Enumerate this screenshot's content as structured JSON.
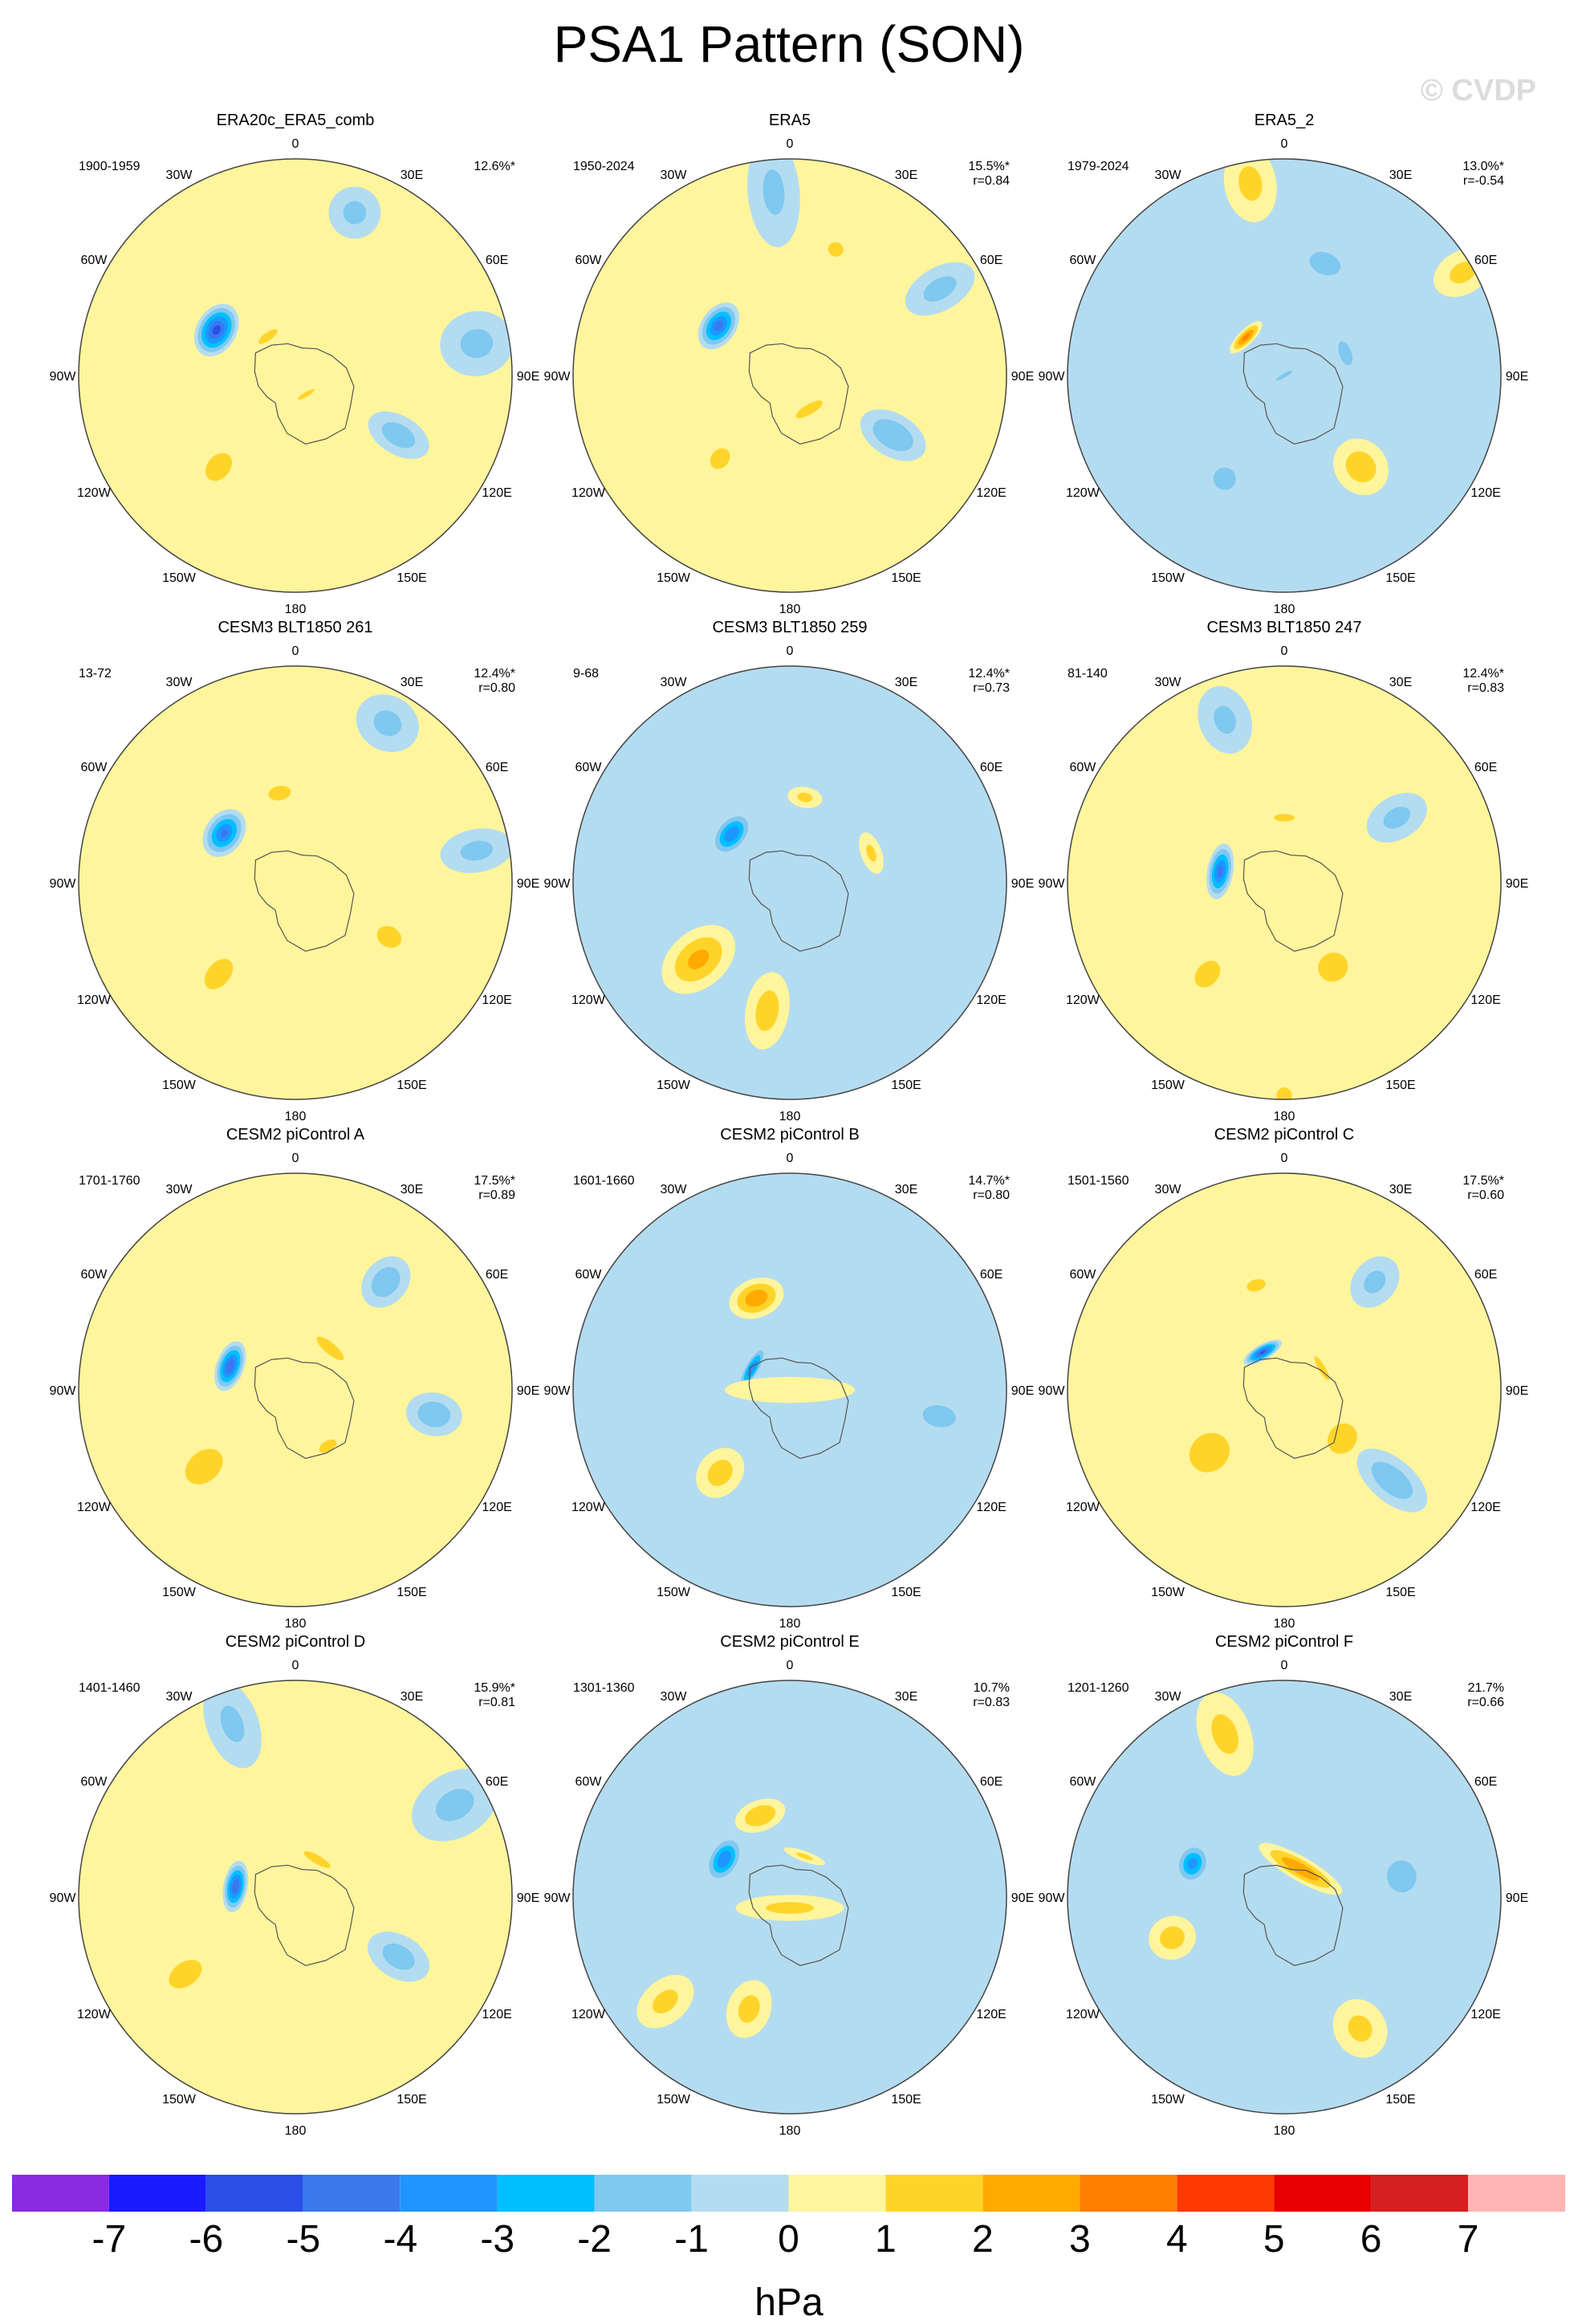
{
  "title": "PSA1 Pattern (SON)",
  "copyright": "© CVDP",
  "lon_labels": [
    "0",
    "30E",
    "60E",
    "90E",
    "120E",
    "150E",
    "180",
    "150W",
    "120W",
    "90W",
    "60W",
    "30W"
  ],
  "colorbar": {
    "units": "hPa",
    "ticks": [
      "-7",
      "-6",
      "-5",
      "-4",
      "-3",
      "-2",
      "-1",
      "0",
      "1",
      "2",
      "3",
      "4",
      "5",
      "6",
      "7"
    ],
    "colors": [
      "#8a2be2",
      "#1a1aff",
      "#2b4ee6",
      "#3a78ee",
      "#1e96ff",
      "#00bfff",
      "#7fc8f0",
      "#b4dcf0",
      "#fff59d",
      "#ffd42a",
      "#ffaa00",
      "#ff7f00",
      "#ff3a00",
      "#e60000",
      "#d42020",
      "#ffb4b4"
    ],
    "bin_edges": [
      -8,
      -7,
      -6,
      -5,
      -4,
      -3,
      -2,
      -1,
      0,
      1,
      2,
      3,
      4,
      5,
      6,
      7,
      8
    ]
  },
  "chart_data": [
    {
      "type": "heatmap",
      "name": "ERA20c_ERA5_comb",
      "period": "1900-1959",
      "pct": "12.6%*",
      "r": "",
      "background": 1,
      "blobs": [
        [
          -60,
          0.42,
          -5.5,
          0.22,
          0.13
        ],
        [
          -35,
          0.22,
          1.5,
          0.16,
          0.1
        ],
        [
          -140,
          0.55,
          1.5,
          0.25,
          0.1
        ],
        [
          20,
          0.8,
          -1.2,
          0.15,
          0.12
        ],
        [
          120,
          0.55,
          -1.6,
          0.28,
          0.09
        ],
        [
          80,
          0.85,
          -1.2,
          0.2,
          0.15
        ],
        [
          150,
          0.1,
          1.2,
          0.12,
          0.1
        ]
      ]
    },
    {
      "type": "heatmap",
      "name": "ERA5",
      "period": "1950-2024",
      "pct": "15.5%*",
      "r": "r=0.84",
      "background": 1,
      "blobs": [
        [
          -55,
          0.4,
          -4.5,
          0.2,
          0.12
        ],
        [
          150,
          0.18,
          1.8,
          0.2,
          0.12
        ],
        [
          20,
          0.62,
          1.2,
          0.12,
          0.08
        ],
        [
          120,
          0.55,
          -2.0,
          0.3,
          0.1
        ],
        [
          60,
          0.8,
          -1.3,
          0.22,
          0.1
        ],
        [
          -5,
          0.85,
          -1.1,
          0.3,
          0.12
        ],
        [
          -140,
          0.5,
          1.1,
          0.25,
          0.1
        ]
      ]
    },
    {
      "type": "heatmap",
      "name": "ERA5_2",
      "period": "1979-2024",
      "pct": "13.0%*",
      "r": "r=-0.54",
      "background": -1,
      "blobs": [
        [
          -45,
          0.25,
          3.2,
          0.14,
          0.1
        ],
        [
          20,
          0.55,
          -2.0,
          0.15,
          0.12
        ],
        [
          70,
          0.3,
          -1.8,
          0.16,
          0.1
        ],
        [
          140,
          0.55,
          1.6,
          0.25,
          0.12
        ],
        [
          -150,
          0.55,
          -1.5,
          0.18,
          0.1
        ],
        [
          -10,
          0.9,
          1.2,
          0.2,
          0.12
        ],
        [
          60,
          0.95,
          1.2,
          0.15,
          0.1
        ],
        [
          150,
          0.0,
          -1.2,
          0.1,
          0.1
        ]
      ]
    },
    {
      "type": "heatmap",
      "name": "CESM3 BLT1850 261",
      "period": "13-72",
      "pct": "12.4%*",
      "r": "r=0.80",
      "background": 1,
      "blobs": [
        [
          -55,
          0.4,
          -4.2,
          0.22,
          0.12
        ],
        [
          -10,
          0.42,
          1.5,
          0.15,
          0.1
        ],
        [
          -140,
          0.55,
          1.5,
          0.28,
          0.1
        ],
        [
          120,
          0.5,
          1.3,
          0.25,
          0.1
        ],
        [
          30,
          0.85,
          -1.2,
          0.15,
          0.15
        ],
        [
          80,
          0.85,
          -1.2,
          0.2,
          0.1
        ]
      ]
    },
    {
      "type": "heatmap",
      "name": "CESM3 BLT1850 259",
      "period": "9-68",
      "pct": "12.4%*",
      "r": "r=0.73",
      "background": -1,
      "blobs": [
        [
          -50,
          0.35,
          -4.0,
          0.22,
          0.12
        ],
        [
          -130,
          0.55,
          2.2,
          0.35,
          0.13
        ],
        [
          -170,
          0.6,
          1.5,
          0.3,
          0.1
        ],
        [
          10,
          0.4,
          1.2,
          0.12,
          0.08
        ],
        [
          70,
          0.4,
          1.1,
          0.12,
          0.1
        ]
      ]
    },
    {
      "type": "heatmap",
      "name": "CESM3 BLT1850 247",
      "period": "81-140",
      "pct": "12.4%*",
      "r": "r=0.83",
      "background": 1,
      "blobs": [
        [
          -80,
          0.3,
          -4.5,
          0.2,
          0.13
        ],
        [
          -140,
          0.55,
          1.4,
          0.25,
          0.1
        ],
        [
          150,
          0.45,
          1.8,
          0.25,
          0.12
        ],
        [
          0,
          0.3,
          1.3,
          0.12,
          0.1
        ],
        [
          60,
          0.6,
          -1.2,
          0.25,
          0.1
        ],
        [
          -20,
          0.8,
          -1.1,
          0.2,
          0.12
        ],
        [
          180,
          0.98,
          1.2,
          0.08,
          0.08
        ]
      ]
    },
    {
      "type": "heatmap",
      "name": "CESM2 piControl A",
      "period": "1701-1760",
      "pct": "17.5%*",
      "r": "r=0.89",
      "background": 1,
      "blobs": [
        [
          -70,
          0.32,
          -5.0,
          0.2,
          0.12
        ],
        [
          40,
          0.25,
          1.7,
          0.18,
          0.14
        ],
        [
          -130,
          0.55,
          1.8,
          0.3,
          0.12
        ],
        [
          150,
          0.3,
          1.2,
          0.18,
          0.1
        ],
        [
          40,
          0.65,
          -1.8,
          0.2,
          0.1
        ],
        [
          100,
          0.65,
          -1.8,
          0.2,
          0.1
        ]
      ]
    },
    {
      "type": "heatmap",
      "name": "CESM2 piControl B",
      "period": "1601-1660",
      "pct": "14.7%*",
      "r": "r=0.80",
      "background": -1,
      "blobs": [
        [
          -60,
          0.2,
          -4.0,
          0.18,
          0.12
        ],
        [
          -20,
          0.45,
          2.8,
          0.2,
          0.13
        ],
        [
          0,
          0.0,
          1.2,
          0.25,
          0.22
        ],
        [
          -140,
          0.5,
          1.5,
          0.25,
          0.1
        ],
        [
          180,
          0.0,
          1.0,
          0.3,
          0.3
        ],
        [
          100,
          0.7,
          -1.4,
          0.22,
          0.1
        ]
      ]
    },
    {
      "type": "heatmap",
      "name": "CESM2 piControl C",
      "period": "1501-1560",
      "pct": "17.5%*",
      "r": "r=0.60",
      "background": 1,
      "blobs": [
        [
          -30,
          0.2,
          -5.2,
          0.18,
          0.1
        ],
        [
          -130,
          0.45,
          2.0,
          0.35,
          0.14
        ],
        [
          130,
          0.35,
          2.0,
          0.3,
          0.12
        ],
        [
          60,
          0.2,
          1.5,
          0.15,
          0.12
        ],
        [
          130,
          0.65,
          -1.8,
          0.3,
          0.1
        ],
        [
          40,
          0.65,
          -1.2,
          0.2,
          0.1
        ],
        [
          -15,
          0.5,
          1.2,
          0.12,
          0.1
        ]
      ]
    },
    {
      "type": "heatmap",
      "name": "CESM2 piControl D",
      "period": "1401-1460",
      "pct": "15.9%*",
      "r": "r=0.81",
      "background": 1,
      "blobs": [
        [
          -80,
          0.28,
          -5.0,
          0.2,
          0.12
        ],
        [
          30,
          0.2,
          1.6,
          0.18,
          0.13
        ],
        [
          -125,
          0.62,
          1.6,
          0.25,
          0.1
        ],
        [
          120,
          0.55,
          -1.5,
          0.28,
          0.1
        ],
        [
          60,
          0.85,
          -1.2,
          0.25,
          0.15
        ],
        [
          -20,
          0.85,
          -1.1,
          0.25,
          0.12
        ]
      ]
    },
    {
      "type": "heatmap",
      "name": "CESM2 piControl E",
      "period": "1301-1360",
      "pct": "10.7%",
      "r": "r=0.83",
      "background": -1,
      "blobs": [
        [
          -60,
          0.35,
          -4.0,
          0.22,
          0.12
        ],
        [
          -20,
          0.4,
          2.0,
          0.18,
          0.12
        ],
        [
          180,
          0.05,
          1.2,
          0.3,
          0.25
        ],
        [
          -160,
          0.55,
          1.3,
          0.25,
          0.1
        ],
        [
          -130,
          0.75,
          1.2,
          0.2,
          0.1
        ],
        [
          20,
          0.2,
          1.1,
          0.12,
          0.1
        ]
      ]
    },
    {
      "type": "heatmap",
      "name": "CESM2 piControl F",
      "period": "1201-1260",
      "pct": "21.7%",
      "r": "r=0.66",
      "background": -1,
      "blobs": [
        [
          30,
          0.15,
          3.0,
          0.28,
          0.22
        ],
        [
          -70,
          0.45,
          -3.5,
          0.18,
          0.1
        ],
        [
          80,
          0.55,
          -2.0,
          0.2,
          0.12
        ],
        [
          -110,
          0.55,
          1.5,
          0.2,
          0.1
        ],
        [
          -20,
          0.8,
          1.3,
          0.25,
          0.12
        ],
        [
          150,
          0.7,
          1.2,
          0.2,
          0.12
        ]
      ]
    }
  ]
}
